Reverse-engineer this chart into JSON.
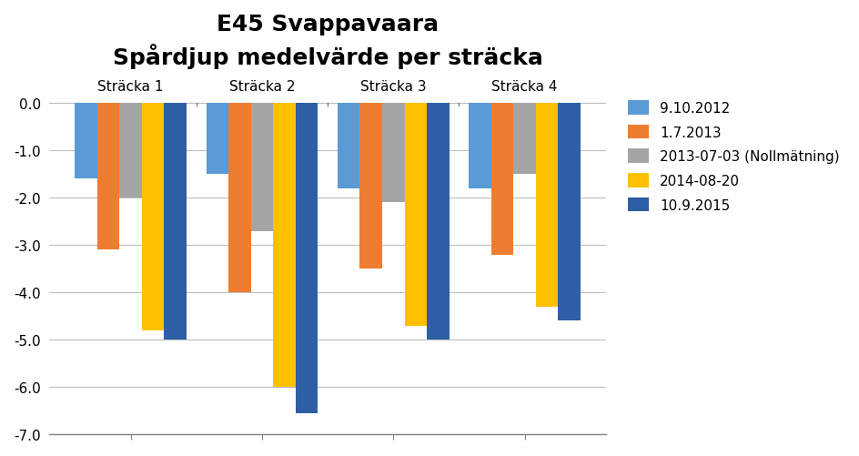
{
  "title_line1": "E45 Svappavaara",
  "title_line2": "Spårdjup medelvärde per sträcka",
  "groups": [
    "Sträcka 1",
    "Sträcka 2",
    "Sträcka 3",
    "Sträcka 4"
  ],
  "series": [
    {
      "label": "9.10.2012",
      "color": "#5B9BD5",
      "values": [
        -1.6,
        -1.5,
        -1.8,
        -1.8
      ]
    },
    {
      "label": "1.7.2013",
      "color": "#ED7D31",
      "values": [
        -3.1,
        -4.0,
        -3.5,
        -3.2
      ]
    },
    {
      "label": "2013-07-03 (Nollmätning)",
      "color": "#A5A5A5",
      "values": [
        -2.0,
        -2.7,
        -2.1,
        -1.5
      ]
    },
    {
      "label": "2014-08-20",
      "color": "#FFC000",
      "values": [
        -4.8,
        -6.0,
        -4.7,
        -4.3
      ]
    },
    {
      "label": "10.9.2015",
      "color": "#2E5EA3",
      "values": [
        -5.0,
        -6.55,
        -5.0,
        -4.6
      ]
    }
  ],
  "ylim": [
    -7.0,
    0.3
  ],
  "yticks": [
    0.0,
    -1.0,
    -2.0,
    -3.0,
    -4.0,
    -5.0,
    -6.0,
    -7.0
  ],
  "background_color": "#FFFFFF",
  "grid_color": "#BFBFBF",
  "title_fontsize": 18,
  "group_label_fontsize": 11,
  "legend_fontsize": 11,
  "tick_fontsize": 11
}
